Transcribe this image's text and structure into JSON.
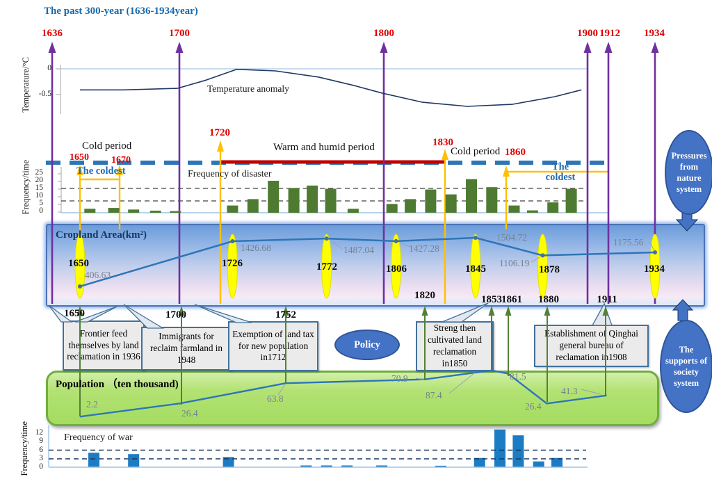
{
  "title": "The past 300-year  (1636-1934year)",
  "top_years": [
    "1636",
    "1700",
    "1800",
    "1900",
    "1912",
    "1934"
  ],
  "climate": {
    "cold_period_left": "Cold period",
    "warm_period": "Warm and humid period",
    "cold_period_right": "Cold period",
    "coldest_left": "The coldest",
    "coldest_right": "The coldest",
    "event_years": [
      "1650",
      "1670",
      "1720",
      "1830",
      "1860"
    ]
  },
  "temperature_panel": {
    "axis_label": "Temperature/°C",
    "curve_label": "Temperature anomaly",
    "ticks": [
      "0",
      "-0.5"
    ]
  },
  "disaster_panel": {
    "axis_label": "Frequency/time",
    "series_label": "Frequency of disaster",
    "ticks": [
      "25",
      "20",
      "15",
      "10",
      "5",
      "0"
    ]
  },
  "cropland_panel": {
    "title": "Cropland Area(km²)",
    "bottom_years": [
      "1650",
      "1700",
      "1752",
      "1820",
      "1853",
      "1861",
      "1880",
      "1911"
    ]
  },
  "policy": {
    "ellipse_label": "Policy",
    "boxes": [
      "Frontier feed themselves by land reclamation in 1936",
      "Immigrants for reclaim farmland in 1948",
      "Exemption of land tax for new population in1712",
      "Streng then cultivated land reclamation in1850",
      "Establishment of Qinghai general bureau of reclamation in1908"
    ]
  },
  "population_panel": {
    "title": "Population （ten thousand)"
  },
  "war_panel": {
    "axis_label": "Frequency/time",
    "series_label": "Frequency of war",
    "ticks": [
      "12",
      "9",
      "6",
      "3",
      "0"
    ]
  },
  "side": {
    "nature": "Pressures from nature system",
    "society": "The supports of society system"
  },
  "colors": {
    "purple_arrow": "#7030a0",
    "orange_arrow": "#ffc000",
    "red_period_line": "#c00000",
    "blue_dashed_line": "#2e75b6",
    "disaster_bar": "#4e7b31",
    "war_bar": "#1b7cc4",
    "data_line": "#2e75b6",
    "band_green": "#a4dc60",
    "ellipse_blue": "#4472c4",
    "highlight_yellow": "#ffff00",
    "year_red": "#e00000"
  },
  "chart_data": [
    {
      "id": "temperature_anomaly",
      "type": "line",
      "title": "Temperature anomaly",
      "ylabel": "Temperature/°C",
      "x_range": [
        1636,
        1934
      ],
      "y_ticks": [
        0,
        -0.5
      ],
      "ylim": [
        -0.9,
        0.15
      ],
      "points": [
        {
          "year": 1650,
          "value": -0.41
        },
        {
          "year": 1672,
          "value": -0.41
        },
        {
          "year": 1699,
          "value": -0.38
        },
        {
          "year": 1713,
          "value": -0.22
        },
        {
          "year": 1728,
          "value": -0.01
        },
        {
          "year": 1747,
          "value": -0.04
        },
        {
          "year": 1768,
          "value": -0.16
        },
        {
          "year": 1785,
          "value": -0.32
        },
        {
          "year": 1799,
          "value": -0.47
        },
        {
          "year": 1819,
          "value": -0.65
        },
        {
          "year": 1841,
          "value": -0.73
        },
        {
          "year": 1863,
          "value": -0.69
        },
        {
          "year": 1884,
          "value": -0.54
        },
        {
          "year": 1897,
          "value": -0.41
        }
      ]
    },
    {
      "id": "disaster_frequency",
      "type": "bar",
      "title": "Frequency of disaster",
      "ylabel": "Frequency/time",
      "ylim": [
        0,
        25
      ],
      "dashed_reference_values": [
        15,
        7.5
      ],
      "years": [
        1655,
        1667,
        1677,
        1688,
        1698,
        1726,
        1736,
        1746,
        1756,
        1765,
        1774,
        1785,
        1804,
        1813,
        1823,
        1833,
        1843,
        1853,
        1864,
        1873,
        1883,
        1892
      ],
      "values": [
        2.5,
        3,
        2,
        1.3,
        1,
        4.5,
        8.5,
        20,
        15.5,
        17,
        15,
        2.5,
        5.5,
        8.5,
        14.5,
        11.5,
        21,
        16,
        4.5,
        1.5,
        6.5,
        15
      ]
    },
    {
      "id": "cropland_area",
      "type": "line",
      "title": "Cropland Area(km²)",
      "points": [
        {
          "year": 1650,
          "value": 406.63
        },
        {
          "year": 1726,
          "value": 1426.68
        },
        {
          "year": 1772,
          "value": 1487.04
        },
        {
          "year": 1806,
          "value": 1427.28
        },
        {
          "year": 1845,
          "value": 1504.72
        },
        {
          "year": 1878,
          "value": 1106.19
        },
        {
          "year": 1934,
          "value": 1175.56
        }
      ]
    },
    {
      "id": "population",
      "type": "line",
      "title": "Population (ten thousand)",
      "points": [
        {
          "year": 1650,
          "value": 2.2
        },
        {
          "year": 1700,
          "value": 26.4
        },
        {
          "year": 1752,
          "value": 63.8
        },
        {
          "year": 1820,
          "value": 70.9
        },
        {
          "year": 1853,
          "value": 87.4
        },
        {
          "year": 1861,
          "value": 81.5
        },
        {
          "year": 1880,
          "value": 26.4
        },
        {
          "year": 1911,
          "value": 41.3
        }
      ]
    },
    {
      "id": "war_frequency",
      "type": "bar",
      "title": "Frequency of war",
      "ylabel": "Frequency/time",
      "ylim": [
        0,
        12
      ],
      "dashed_reference_values": [
        6,
        3
      ],
      "years": [
        1657,
        1677,
        1724,
        1762,
        1772,
        1782,
        1799,
        1828,
        1847,
        1857,
        1866,
        1876,
        1885
      ],
      "values": [
        5,
        4.5,
        3.5,
        0.6,
        0.6,
        0.6,
        0.6,
        0.5,
        3.2,
        13,
        11,
        2,
        3.2
      ]
    }
  ]
}
